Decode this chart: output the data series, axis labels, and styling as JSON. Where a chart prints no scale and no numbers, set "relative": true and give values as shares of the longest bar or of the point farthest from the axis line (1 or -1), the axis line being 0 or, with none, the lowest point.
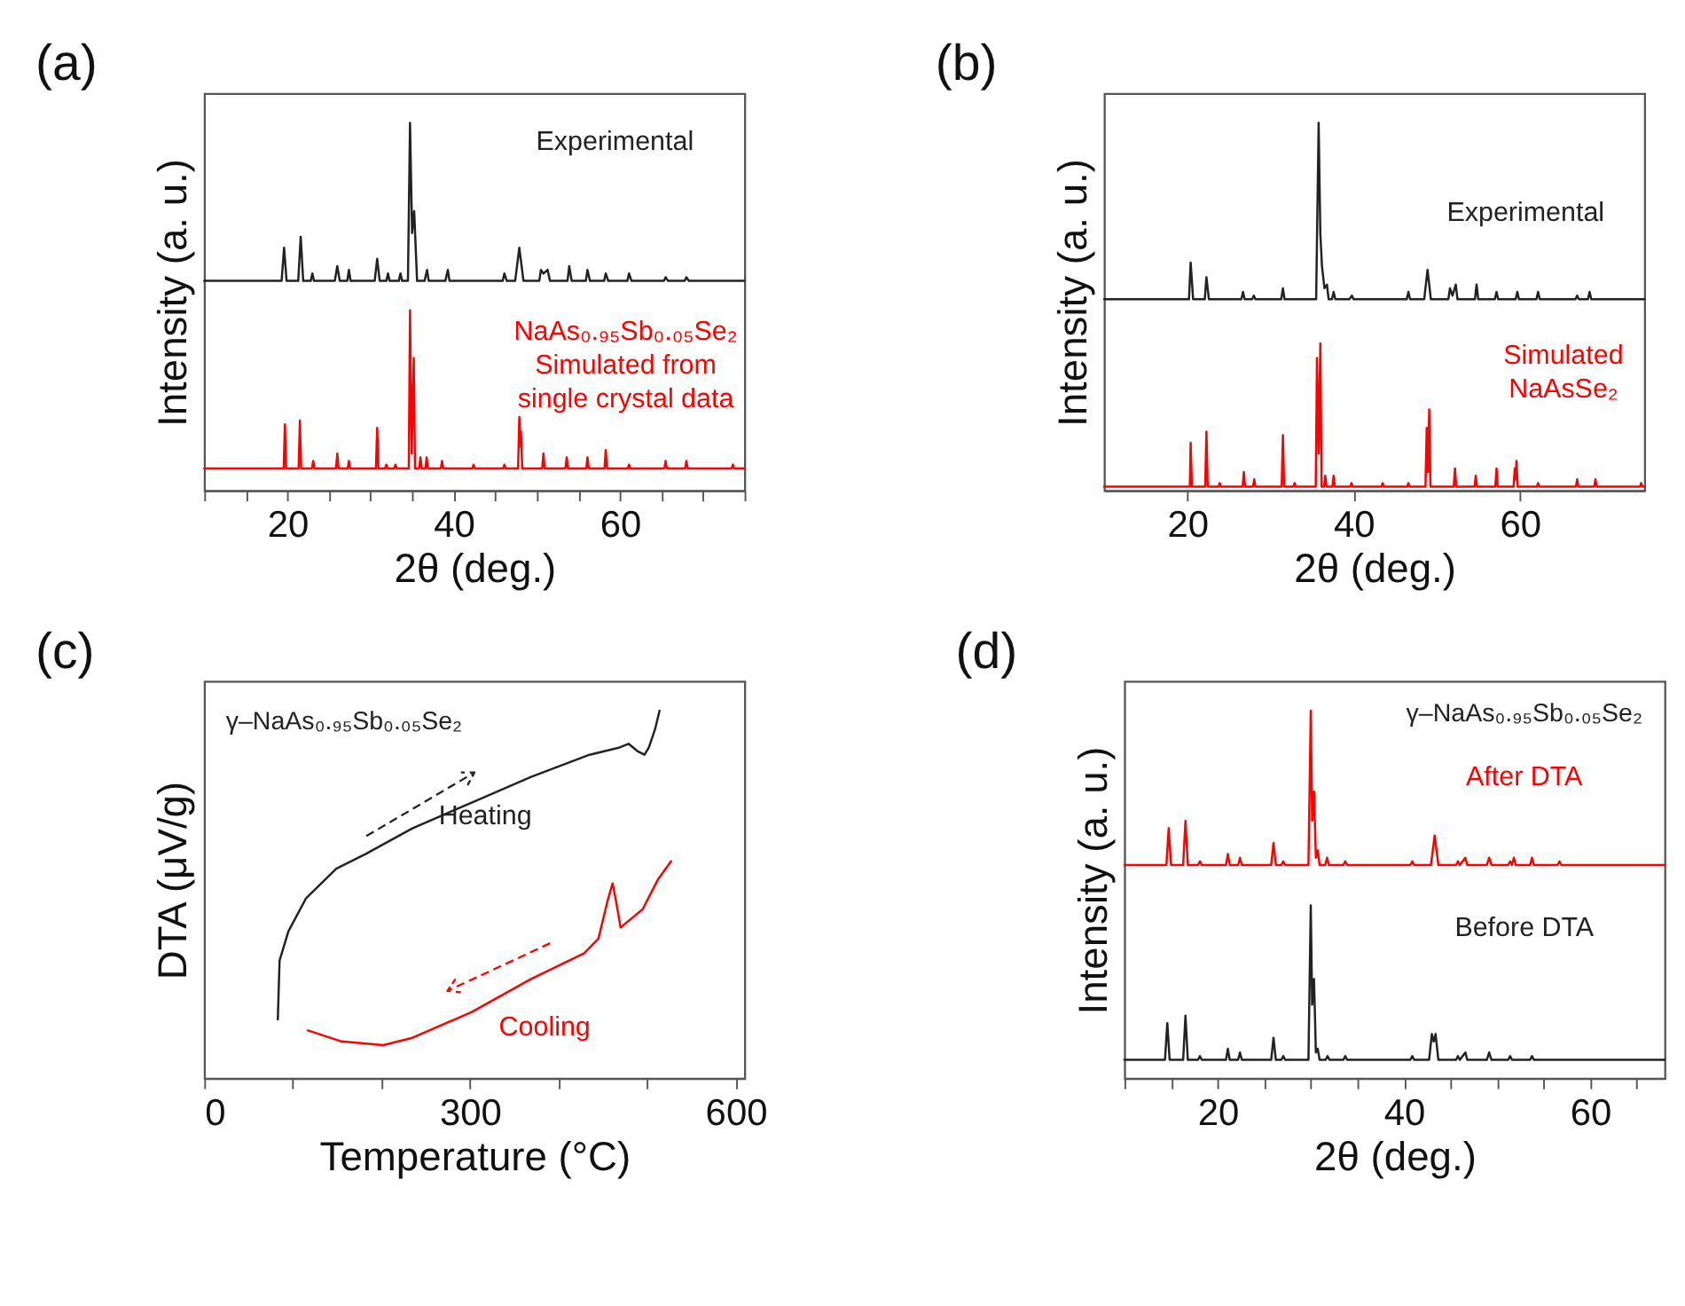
{
  "chart_data": [
    {
      "type": "line",
      "title": "(a)",
      "xlabel": "2θ (deg.)",
      "ylabel": "Intensity (a. u.)",
      "relative": true,
      "xlim": [
        10,
        75
      ],
      "xticks": [
        {
          "value": 10,
          "label": null
        },
        {
          "value": 15,
          "label": null
        },
        20,
        {
          "value": 25,
          "label": null
        },
        {
          "value": 30,
          "label": null
        },
        {
          "value": 35,
          "label": null
        },
        40,
        {
          "value": 45,
          "label": null
        },
        {
          "value": 50,
          "label": null
        },
        {
          "value": 55,
          "label": null
        },
        60,
        {
          "value": 65,
          "label": null
        },
        {
          "value": 70,
          "label": null
        },
        {
          "value": 75,
          "label": null
        }
      ],
      "series": [
        {
          "name": "Experimental",
          "color": "#222222",
          "x": [
            10,
            19.3,
            19.6,
            19.9,
            21.3,
            21.6,
            21.9,
            22.8,
            23.0,
            23.2,
            25.7,
            26.0,
            26.3,
            27.2,
            27.4,
            27.6,
            30.5,
            30.8,
            31.1,
            31.9,
            32.1,
            32.3,
            33.4,
            33.6,
            33.8,
            34.5,
            34.75,
            35.0,
            35.25,
            35.6,
            36.5,
            36.8,
            37.0,
            39.0,
            39.3,
            39.5,
            45.9,
            46.1,
            46.4,
            47.4,
            47.9,
            48.4,
            50.3,
            50.5,
            50.8,
            51.3,
            51.6,
            53.7,
            53.9,
            54.2,
            55.9,
            56.1,
            56.4,
            58.1,
            58.3,
            58.6,
            60.9,
            61.1,
            61.4,
            65.3,
            65.5,
            65.8,
            67.8,
            68.0,
            68.3,
            75
          ],
          "values": [
            0.57,
            0.57,
            0.66,
            0.57,
            0.57,
            0.69,
            0.57,
            0.57,
            0.59,
            0.57,
            0.57,
            0.61,
            0.57,
            0.57,
            0.6,
            0.57,
            0.57,
            0.63,
            0.57,
            0.57,
            0.59,
            0.57,
            0.57,
            0.59,
            0.57,
            0.57,
            1.0,
            0.7,
            0.76,
            0.57,
            0.57,
            0.6,
            0.57,
            0.57,
            0.6,
            0.57,
            0.57,
            0.59,
            0.57,
            0.57,
            0.66,
            0.57,
            0.57,
            0.6,
            0.59,
            0.6,
            0.57,
            0.57,
            0.61,
            0.57,
            0.57,
            0.6,
            0.57,
            0.57,
            0.59,
            0.57,
            0.57,
            0.59,
            0.57,
            0.57,
            0.58,
            0.57,
            0.57,
            0.58,
            0.57,
            0.57
          ]
        },
        {
          "name": "NaAs₀.₉₅Sb₀.₀₅Se₂ Simulated from single crystal data",
          "color": "#ff0000",
          "x": [
            10,
            19.55,
            19.7,
            19.85,
            21.35,
            21.5,
            21.65,
            22.95,
            23.1,
            23.25,
            25.85,
            26.0,
            26.15,
            27.25,
            27.4,
            27.55,
            30.65,
            30.8,
            30.95,
            31.75,
            31.9,
            32.05,
            32.85,
            33.0,
            33.15,
            34.6,
            34.75,
            34.95,
            35.2,
            35.35,
            35.85,
            36.0,
            36.15,
            36.6,
            36.75,
            36.9,
            38.45,
            38.6,
            38.75,
            42.25,
            42.4,
            42.55,
            45.95,
            46.1,
            46.25,
            47.75,
            47.9,
            48.0,
            48.1,
            48.25,
            50.65,
            50.8,
            50.95,
            53.45,
            53.6,
            53.75,
            55.95,
            56.1,
            56.25,
            58.15,
            58.3,
            58.45,
            60.95,
            61.1,
            61.25,
            65.35,
            65.5,
            65.65,
            67.85,
            68.0,
            68.15,
            73.45,
            73.6,
            73.75,
            75
          ],
          "values": [
            0.06,
            0.06,
            0.18,
            0.06,
            0.06,
            0.19,
            0.06,
            0.06,
            0.08,
            0.06,
            0.06,
            0.1,
            0.06,
            0.06,
            0.08,
            0.06,
            0.06,
            0.17,
            0.06,
            0.06,
            0.07,
            0.06,
            0.06,
            0.07,
            0.06,
            0.06,
            0.49,
            0.1,
            0.36,
            0.06,
            0.06,
            0.09,
            0.06,
            0.06,
            0.09,
            0.06,
            0.06,
            0.08,
            0.06,
            0.06,
            0.07,
            0.06,
            0.06,
            0.07,
            0.06,
            0.06,
            0.2,
            0.12,
            0.16,
            0.06,
            0.06,
            0.1,
            0.06,
            0.06,
            0.09,
            0.06,
            0.06,
            0.09,
            0.06,
            0.06,
            0.11,
            0.06,
            0.06,
            0.07,
            0.06,
            0.06,
            0.08,
            0.06,
            0.06,
            0.08,
            0.06,
            0.06,
            0.07,
            0.06,
            0.06
          ]
        }
      ]
    },
    {
      "type": "line",
      "title": "(b)",
      "xlabel": "2θ (deg.)",
      "ylabel": "Intensity (a. u.)",
      "relative": true,
      "xlim": [
        10,
        75
      ],
      "xticks": [
        20,
        40,
        60
      ],
      "series": [
        {
          "name": "Experimental",
          "color": "#222222",
          "x": [
            10,
            20.2,
            20.4,
            20.7,
            22.1,
            22.3,
            22.6,
            26.5,
            26.7,
            26.9,
            27.8,
            28.0,
            28.2,
            31.3,
            31.5,
            31.7,
            35.5,
            35.8,
            36.0,
            36.2,
            36.5,
            36.8,
            37.0,
            37.4,
            37.6,
            37.8,
            39.5,
            39.8,
            40.0,
            46.4,
            46.6,
            46.8,
            48.5,
            48.9,
            49.3,
            51.4,
            51.6,
            51.9,
            52.3,
            52.5,
            54.6,
            54.8,
            55.0,
            57.0,
            57.2,
            57.4,
            59.5,
            59.7,
            59.9,
            62.0,
            62.2,
            62.4,
            66.7,
            66.9,
            67.1,
            68.2,
            68.4,
            68.6,
            75
          ],
          "values": [
            0.52,
            0.52,
            0.62,
            0.52,
            0.52,
            0.58,
            0.52,
            0.52,
            0.54,
            0.52,
            0.52,
            0.53,
            0.52,
            0.52,
            0.55,
            0.52,
            0.52,
            1.0,
            0.7,
            0.61,
            0.55,
            0.56,
            0.52,
            0.52,
            0.54,
            0.52,
            0.52,
            0.53,
            0.52,
            0.52,
            0.54,
            0.52,
            0.52,
            0.6,
            0.52,
            0.52,
            0.55,
            0.53,
            0.56,
            0.52,
            0.52,
            0.56,
            0.52,
            0.52,
            0.54,
            0.52,
            0.52,
            0.54,
            0.52,
            0.52,
            0.54,
            0.52,
            0.52,
            0.53,
            0.52,
            0.52,
            0.54,
            0.52,
            0.52
          ]
        },
        {
          "name": "Simulated NaAsSe₂",
          "color": "#ff0000",
          "x": [
            10,
            20.3,
            20.4,
            20.55,
            22.15,
            22.3,
            22.45,
            23.75,
            23.9,
            24.05,
            26.65,
            26.8,
            26.95,
            27.9,
            28.05,
            28.2,
            31.35,
            31.5,
            31.65,
            32.75,
            32.9,
            33.05,
            35.45,
            35.6,
            35.8,
            36.0,
            36.15,
            36.45,
            36.6,
            36.75,
            37.45,
            37.6,
            37.75,
            39.6,
            39.75,
            39.9,
            43.35,
            43.5,
            43.65,
            46.45,
            46.6,
            46.75,
            48.65,
            48.8,
            48.95,
            49.1,
            49.25,
            52.05,
            52.2,
            52.35,
            54.55,
            54.7,
            54.85,
            57.05,
            57.2,
            57.35,
            59.25,
            59.4,
            59.5,
            59.6,
            59.75,
            62.05,
            62.2,
            62.35,
            66.75,
            66.9,
            67.05,
            68.95,
            69.1,
            69.25,
            74.45,
            74.6,
            74.75,
            75
          ],
          "values": [
            0.01,
            0.01,
            0.13,
            0.01,
            0.01,
            0.16,
            0.01,
            0.01,
            0.02,
            0.01,
            0.01,
            0.05,
            0.01,
            0.01,
            0.03,
            0.01,
            0.01,
            0.15,
            0.01,
            0.01,
            0.02,
            0.01,
            0.01,
            0.36,
            0.1,
            0.4,
            0.01,
            0.01,
            0.04,
            0.01,
            0.01,
            0.04,
            0.01,
            0.01,
            0.02,
            0.01,
            0.01,
            0.02,
            0.01,
            0.01,
            0.02,
            0.01,
            0.01,
            0.17,
            0.05,
            0.22,
            0.01,
            0.01,
            0.06,
            0.01,
            0.01,
            0.04,
            0.01,
            0.01,
            0.06,
            0.01,
            0.01,
            0.06,
            0.03,
            0.08,
            0.01,
            0.01,
            0.02,
            0.01,
            0.01,
            0.03,
            0.01,
            0.01,
            0.03,
            0.01,
            0.01,
            0.02,
            0.01,
            0.01
          ]
        }
      ]
    },
    {
      "type": "line",
      "title": "(c)",
      "xlabel": "Temperature (°C)",
      "ylabel": "DTA (μV/g)",
      "relative": true,
      "xlim": [
        0,
        610
      ],
      "xticks": [
        0,
        {
          "value": 100,
          "label": null
        },
        {
          "value": 200,
          "label": null
        },
        300,
        {
          "value": 400,
          "label": null
        },
        {
          "value": 500,
          "label": null
        },
        600
      ],
      "annotations": [
        "γ–NaAs₀.₉₅Sb₀.₀₅Se₂"
      ],
      "series": [
        {
          "name": "Heating",
          "color": "#222222",
          "x": [
            83,
            85,
            95,
            115,
            149,
            182,
            235,
            302,
            369,
            435,
            469,
            479,
            489,
            497,
            502,
            509,
            514
          ],
          "values": [
            0.16,
            0.32,
            0.4,
            0.49,
            0.57,
            0.61,
            0.68,
            0.75,
            0.82,
            0.88,
            0.9,
            0.91,
            0.89,
            0.88,
            0.9,
            0.95,
            1.0
          ]
        },
        {
          "name": "Cooling",
          "color": "#ff0000",
          "x": [
            117,
            155,
            202,
            235,
            302,
            369,
            429,
            445,
            455,
            461,
            465,
            470,
            495,
            512,
            527
          ],
          "values": [
            0.13,
            0.1,
            0.09,
            0.11,
            0.18,
            0.27,
            0.34,
            0.38,
            0.48,
            0.53,
            0.48,
            0.41,
            0.46,
            0.54,
            0.59
          ]
        }
      ]
    },
    {
      "type": "line",
      "title": "(d)",
      "xlabel": "2θ (deg.)",
      "ylabel": "Intensity (a. u.)",
      "relative": true,
      "xlim": [
        10,
        68
      ],
      "xticks": [
        {
          "value": 10,
          "label": null
        },
        {
          "value": 15,
          "label": null
        },
        20,
        {
          "value": 25,
          "label": null
        },
        {
          "value": 30,
          "label": null
        },
        {
          "value": 35,
          "label": null
        },
        40,
        {
          "value": 45,
          "label": null
        },
        {
          "value": 50,
          "label": null
        },
        {
          "value": 55,
          "label": null
        },
        60,
        {
          "value": 65,
          "label": null
        }
      ],
      "annotations": [
        "γ–NaAs₀.₉₅Sb₀.₀₅Se₂"
      ],
      "series": [
        {
          "name": "After DTA",
          "color": "#ff0000",
          "x": [
            10,
            14.5,
            14.75,
            15.0,
            16.3,
            16.55,
            16.8,
            17.9,
            18.1,
            18.3,
            20.9,
            21.1,
            21.3,
            22.2,
            22.4,
            22.6,
            25.75,
            26.0,
            26.25,
            26.85,
            27.05,
            27.25,
            29.75,
            30.0,
            30.15,
            30.35,
            30.55,
            30.75,
            30.95,
            31.55,
            31.75,
            31.95,
            33.5,
            33.7,
            33.9,
            40.7,
            40.9,
            41.1,
            42.9,
            43.3,
            43.7,
            45.6,
            45.8,
            46.0,
            46.6,
            46.8,
            48.9,
            49.15,
            49.4,
            51.2,
            51.4,
            51.6,
            51.8,
            52.0,
            53.55,
            53.75,
            53.95,
            56.5,
            56.7,
            56.9,
            68
          ],
          "values": [
            0.58,
            0.58,
            0.68,
            0.58,
            0.58,
            0.7,
            0.58,
            0.58,
            0.59,
            0.58,
            0.58,
            0.61,
            0.58,
            0.58,
            0.6,
            0.58,
            0.58,
            0.64,
            0.58,
            0.58,
            0.59,
            0.58,
            0.58,
            1.0,
            0.7,
            0.78,
            0.6,
            0.62,
            0.58,
            0.58,
            0.6,
            0.58,
            0.58,
            0.59,
            0.58,
            0.58,
            0.59,
            0.58,
            0.58,
            0.66,
            0.58,
            0.58,
            0.59,
            0.58,
            0.6,
            0.58,
            0.58,
            0.6,
            0.58,
            0.58,
            0.59,
            0.58,
            0.6,
            0.58,
            0.58,
            0.6,
            0.58,
            0.58,
            0.59,
            0.58,
            0.58
          ]
        },
        {
          "name": "Before DTA",
          "color": "#222222",
          "x": [
            10,
            14.35,
            14.6,
            14.85,
            16.3,
            16.55,
            16.8,
            17.9,
            18.1,
            18.3,
            20.9,
            21.1,
            21.3,
            22.2,
            22.4,
            22.6,
            25.75,
            26.0,
            26.25,
            26.85,
            27.05,
            27.25,
            29.75,
            30.0,
            30.15,
            30.35,
            30.55,
            30.75,
            30.95,
            31.6,
            31.8,
            32.0,
            33.5,
            33.7,
            33.9,
            40.7,
            40.9,
            41.1,
            42.7,
            43.0,
            43.2,
            43.4,
            43.7,
            45.6,
            45.8,
            46.0,
            46.6,
            46.8,
            48.9,
            49.15,
            49.4,
            51.2,
            51.4,
            51.6,
            53.55,
            53.75,
            53.95,
            68
          ],
          "values": [
            0.05,
            0.05,
            0.15,
            0.05,
            0.05,
            0.17,
            0.05,
            0.05,
            0.06,
            0.05,
            0.05,
            0.08,
            0.05,
            0.05,
            0.07,
            0.05,
            0.05,
            0.11,
            0.05,
            0.05,
            0.06,
            0.05,
            0.05,
            0.47,
            0.2,
            0.27,
            0.07,
            0.08,
            0.05,
            0.05,
            0.06,
            0.05,
            0.05,
            0.06,
            0.05,
            0.05,
            0.06,
            0.05,
            0.05,
            0.12,
            0.1,
            0.12,
            0.05,
            0.05,
            0.06,
            0.05,
            0.07,
            0.05,
            0.05,
            0.07,
            0.05,
            0.05,
            0.06,
            0.05,
            0.05,
            0.06,
            0.05,
            0.05
          ]
        }
      ]
    }
  ]
}
